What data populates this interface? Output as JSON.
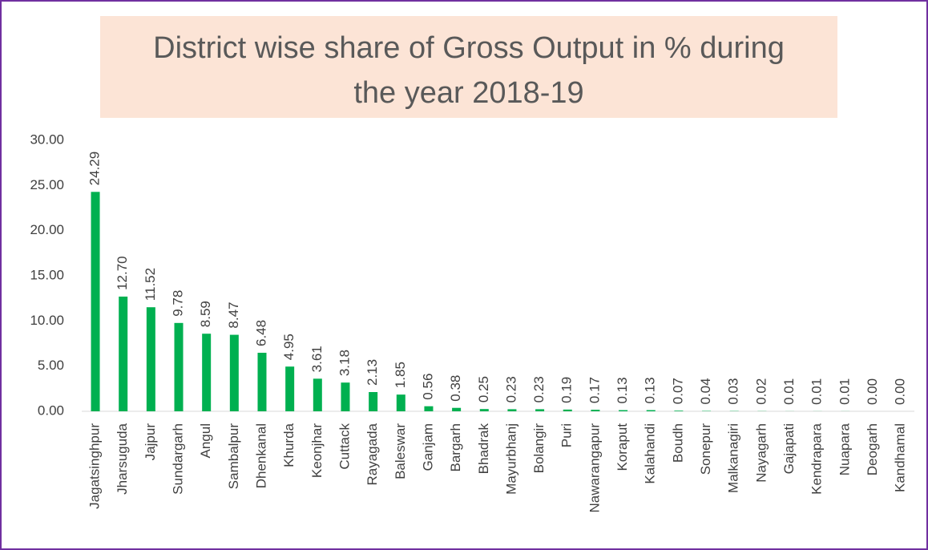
{
  "chart_data": {
    "type": "bar",
    "title": "District wise share of Gross Output in % during the year 2018-19",
    "categories": [
      "Jagatsinghpur",
      "Jharsuguda",
      "Jajpur",
      "Sundargarh",
      "Angul",
      "Sambalpur",
      "Dhenkanal",
      "Khurda",
      "Keonjhar",
      "Cuttack",
      "Rayagada",
      "Baleswar",
      "Ganjam",
      "Bargarh",
      "Bhadrak",
      "Mayurbhanj",
      "Bolangir",
      "Puri",
      "Nawarangapur",
      "Koraput",
      "Kalahandi",
      "Boudh",
      "Sonepur",
      "Malkanagiri",
      "Nayagarh",
      "Gajapati",
      "Kendrapara",
      "Nuapara",
      "Deogarh",
      "Kandhamal"
    ],
    "values": [
      24.29,
      12.7,
      11.52,
      9.78,
      8.59,
      8.47,
      6.48,
      4.95,
      3.61,
      3.18,
      2.13,
      1.85,
      0.56,
      0.38,
      0.25,
      0.23,
      0.23,
      0.19,
      0.17,
      0.13,
      0.13,
      0.07,
      0.04,
      0.03,
      0.02,
      0.01,
      0.01,
      0.01,
      0.0,
      0.0
    ],
    "value_labels": [
      "24.29",
      "12.70",
      "11.52",
      "9.78",
      "8.59",
      "8.47",
      "6.48",
      "4.95",
      "3.61",
      "3.18",
      "2.13",
      "1.85",
      "0.56",
      "0.38",
      "0.25",
      "0.23",
      "0.23",
      "0.19",
      "0.17",
      "0.13",
      "0.13",
      "0.07",
      "0.04",
      "0.03",
      "0.02",
      "0.01",
      "0.01",
      "0.01",
      "0.00",
      "0.00"
    ],
    "color": "#00b050",
    "ylim": [
      0,
      30
    ],
    "yticks": [
      {
        "value": 0,
        "label": "0.00"
      },
      {
        "value": 5,
        "label": "5.00"
      },
      {
        "value": 10,
        "label": "10.00"
      },
      {
        "value": 15,
        "label": "15.00"
      },
      {
        "value": 20,
        "label": "20.00"
      },
      {
        "value": 25,
        "label": "25.00"
      },
      {
        "value": 30,
        "label": "30.00"
      }
    ],
    "grid": false
  }
}
